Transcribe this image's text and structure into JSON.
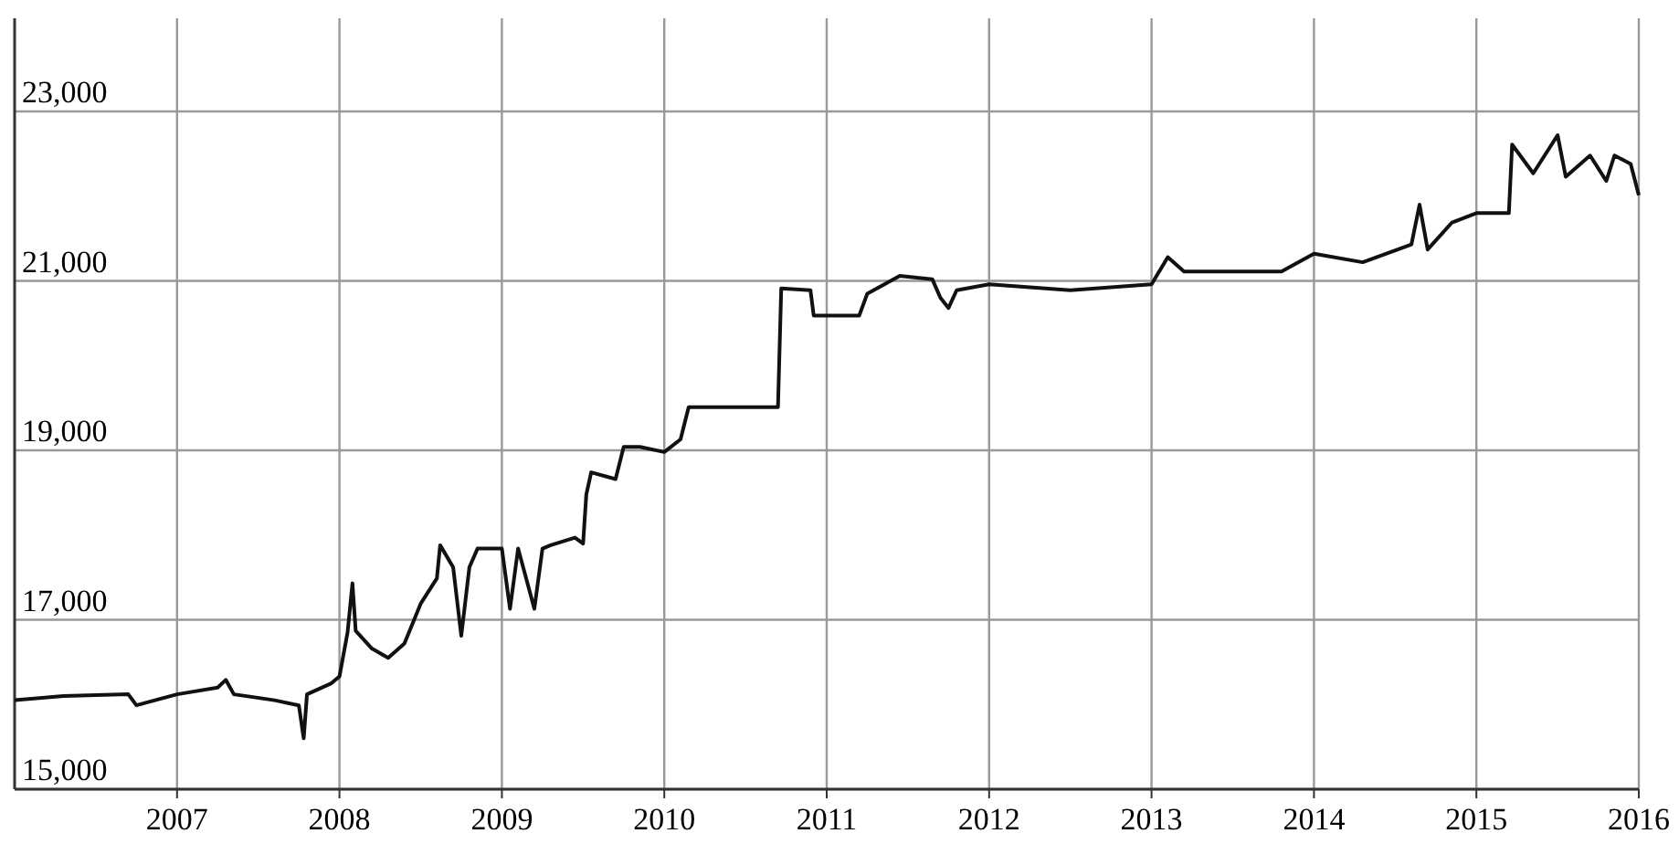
{
  "chart_data": {
    "type": "line",
    "x": [
      2006.0,
      2006.3,
      2006.7,
      2006.75,
      2007.0,
      2007.25,
      2007.3,
      2007.35,
      2007.6,
      2007.75,
      2007.78,
      2007.8,
      2007.95,
      2008.0,
      2008.05,
      2008.08,
      2008.1,
      2008.2,
      2008.3,
      2008.4,
      2008.5,
      2008.6,
      2008.62,
      2008.7,
      2008.75,
      2008.8,
      2008.85,
      2009.0,
      2009.05,
      2009.1,
      2009.2,
      2009.25,
      2009.3,
      2009.45,
      2009.5,
      2009.52,
      2009.55,
      2009.7,
      2009.75,
      2009.85,
      2010.0,
      2010.1,
      2010.15,
      2010.7,
      2010.72,
      2010.9,
      2010.92,
      2011.2,
      2011.25,
      2011.45,
      2011.65,
      2011.7,
      2011.75,
      2011.8,
      2012.0,
      2012.5,
      2013.0,
      2013.1,
      2013.2,
      2013.8,
      2014.0,
      2014.3,
      2014.6,
      2014.65,
      2014.7,
      2014.85,
      2015.0,
      2015.2,
      2015.22,
      2015.35,
      2015.5,
      2015.55,
      2015.7,
      2015.8,
      2015.85,
      2015.95,
      2016.0
    ],
    "series": [
      {
        "color": "#111111",
        "values": [
          16050,
          16100,
          16120,
          15990,
          16120,
          16200,
          16290,
          16120,
          16050,
          15990,
          15600,
          16120,
          16250,
          16330,
          16850,
          17430,
          16870,
          16660,
          16550,
          16720,
          17190,
          17490,
          17880,
          17620,
          16810,
          17620,
          17840,
          17840,
          17130,
          17840,
          17130,
          17840,
          17880,
          17970,
          17900,
          18480,
          18740,
          18660,
          19040,
          19040,
          18980,
          19130,
          19510,
          19510,
          20910,
          20890,
          20590,
          20590,
          20850,
          21060,
          21020,
          20800,
          20680,
          20890,
          20960,
          20890,
          20960,
          21280,
          21110,
          21110,
          21320,
          21220,
          21430,
          21900,
          21370,
          21690,
          21800,
          21800,
          22610,
          22270,
          22720,
          22230,
          22480,
          22180,
          22480,
          22380,
          22010
        ]
      }
    ],
    "xlim": [
      2006.0,
      2016
    ],
    "xticks": [
      2007,
      2008,
      2009,
      2010,
      2011,
      2012,
      2013,
      2014,
      2015,
      2016
    ],
    "ylim": [
      15000,
      24100
    ],
    "yticks": [
      {
        "value": 15000,
        "label": "15,000"
      },
      {
        "value": 17000,
        "label": "17,000"
      },
      {
        "value": 19000,
        "label": "19,000"
      },
      {
        "value": 21000,
        "label": "21,000"
      },
      {
        "value": 23000,
        "label": "23,000"
      }
    ],
    "grid": true,
    "marker": "none",
    "line_style": "solid"
  }
}
